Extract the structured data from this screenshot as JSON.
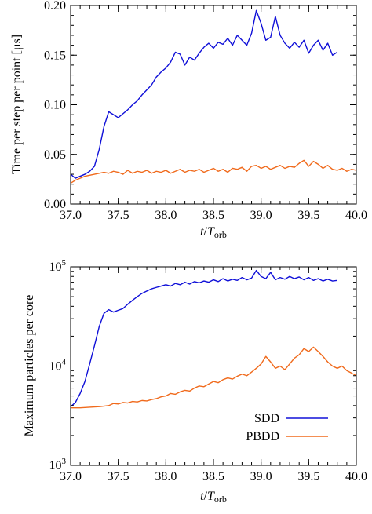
{
  "colors": {
    "sdd": "#1010d8",
    "pbdd": "#f06a1c",
    "axis": "#000000"
  },
  "chart_data": [
    {
      "type": "line",
      "ylabel": "Time per step per point [μs]",
      "xlabel_main": "t",
      "xlabel_slash": "/",
      "xlabel_T": "T",
      "xlabel_sub": "orb",
      "xlim": [
        37.0,
        40.0
      ],
      "ylim": [
        0.0,
        0.2
      ],
      "yscale": "linear",
      "x_ticks": [
        37.0,
        37.5,
        38.0,
        38.5,
        39.0,
        39.5,
        40.0
      ],
      "x_tick_labels": [
        "37.0",
        "37.5",
        "38.0",
        "38.5",
        "39.0",
        "39.5",
        "40.0"
      ],
      "y_ticks": [
        0.0,
        0.05,
        0.1,
        0.15,
        0.2
      ],
      "y_tick_labels": [
        "0.00",
        "0.05",
        "0.10",
        "0.15",
        "0.20"
      ],
      "series": [
        {
          "name": "SDD",
          "points": [
            [
              37.0,
              0.03
            ],
            [
              37.05,
              0.026
            ],
            [
              37.1,
              0.028
            ],
            [
              37.15,
              0.03
            ],
            [
              37.2,
              0.033
            ],
            [
              37.25,
              0.038
            ],
            [
              37.3,
              0.055
            ],
            [
              37.35,
              0.078
            ],
            [
              37.4,
              0.093
            ],
            [
              37.45,
              0.09
            ],
            [
              37.5,
              0.087
            ],
            [
              37.55,
              0.091
            ],
            [
              37.6,
              0.095
            ],
            [
              37.65,
              0.1
            ],
            [
              37.7,
              0.104
            ],
            [
              37.75,
              0.11
            ],
            [
              37.8,
              0.115
            ],
            [
              37.85,
              0.12
            ],
            [
              37.9,
              0.128
            ],
            [
              37.95,
              0.133
            ],
            [
              38.0,
              0.137
            ],
            [
              38.05,
              0.143
            ],
            [
              38.1,
              0.153
            ],
            [
              38.15,
              0.151
            ],
            [
              38.2,
              0.14
            ],
            [
              38.25,
              0.148
            ],
            [
              38.3,
              0.145
            ],
            [
              38.35,
              0.152
            ],
            [
              38.4,
              0.158
            ],
            [
              38.45,
              0.162
            ],
            [
              38.5,
              0.157
            ],
            [
              38.55,
              0.163
            ],
            [
              38.6,
              0.161
            ],
            [
              38.65,
              0.167
            ],
            [
              38.7,
              0.16
            ],
            [
              38.75,
              0.17
            ],
            [
              38.8,
              0.165
            ],
            [
              38.85,
              0.16
            ],
            [
              38.9,
              0.172
            ],
            [
              38.95,
              0.195
            ],
            [
              39.0,
              0.182
            ],
            [
              39.05,
              0.165
            ],
            [
              39.1,
              0.168
            ],
            [
              39.15,
              0.189
            ],
            [
              39.2,
              0.17
            ],
            [
              39.25,
              0.162
            ],
            [
              39.3,
              0.157
            ],
            [
              39.35,
              0.163
            ],
            [
              39.4,
              0.158
            ],
            [
              39.45,
              0.165
            ],
            [
              39.5,
              0.152
            ],
            [
              39.55,
              0.16
            ],
            [
              39.6,
              0.165
            ],
            [
              39.65,
              0.155
            ],
            [
              39.7,
              0.162
            ],
            [
              39.75,
              0.15
            ],
            [
              39.8,
              0.153
            ]
          ]
        },
        {
          "name": "PBDD",
          "points": [
            [
              37.0,
              0.021
            ],
            [
              37.05,
              0.024
            ],
            [
              37.1,
              0.026
            ],
            [
              37.15,
              0.028
            ],
            [
              37.2,
              0.029
            ],
            [
              37.25,
              0.03
            ],
            [
              37.3,
              0.031
            ],
            [
              37.35,
              0.032
            ],
            [
              37.4,
              0.031
            ],
            [
              37.45,
              0.033
            ],
            [
              37.5,
              0.032
            ],
            [
              37.55,
              0.03
            ],
            [
              37.6,
              0.034
            ],
            [
              37.65,
              0.031
            ],
            [
              37.7,
              0.033
            ],
            [
              37.75,
              0.032
            ],
            [
              37.8,
              0.034
            ],
            [
              37.85,
              0.031
            ],
            [
              37.9,
              0.033
            ],
            [
              37.95,
              0.032
            ],
            [
              38.0,
              0.034
            ],
            [
              38.05,
              0.031
            ],
            [
              38.1,
              0.033
            ],
            [
              38.15,
              0.035
            ],
            [
              38.2,
              0.032
            ],
            [
              38.25,
              0.034
            ],
            [
              38.3,
              0.033
            ],
            [
              38.35,
              0.035
            ],
            [
              38.4,
              0.032
            ],
            [
              38.45,
              0.034
            ],
            [
              38.5,
              0.036
            ],
            [
              38.55,
              0.033
            ],
            [
              38.6,
              0.035
            ],
            [
              38.65,
              0.032
            ],
            [
              38.7,
              0.036
            ],
            [
              38.75,
              0.035
            ],
            [
              38.8,
              0.037
            ],
            [
              38.85,
              0.033
            ],
            [
              38.9,
              0.038
            ],
            [
              38.95,
              0.039
            ],
            [
              39.0,
              0.036
            ],
            [
              39.05,
              0.038
            ],
            [
              39.1,
              0.035
            ],
            [
              39.15,
              0.037
            ],
            [
              39.2,
              0.039
            ],
            [
              39.25,
              0.036
            ],
            [
              39.3,
              0.038
            ],
            [
              39.35,
              0.037
            ],
            [
              39.4,
              0.041
            ],
            [
              39.45,
              0.044
            ],
            [
              39.5,
              0.038
            ],
            [
              39.55,
              0.043
            ],
            [
              39.6,
              0.04
            ],
            [
              39.65,
              0.036
            ],
            [
              39.7,
              0.039
            ],
            [
              39.75,
              0.035
            ],
            [
              39.8,
              0.034
            ],
            [
              39.85,
              0.036
            ],
            [
              39.9,
              0.033
            ],
            [
              39.95,
              0.035
            ],
            [
              40.0,
              0.034
            ]
          ]
        }
      ]
    },
    {
      "type": "line",
      "ylabel": "Maximum particles per core",
      "xlabel_main": "t",
      "xlabel_slash": "/",
      "xlabel_T": "T",
      "xlabel_sub": "orb",
      "xlim": [
        37.0,
        40.0
      ],
      "ylim": [
        1000,
        100000
      ],
      "yscale": "log",
      "legend_position": "bottom-right",
      "x_ticks": [
        37.0,
        37.5,
        38.0,
        38.5,
        39.0,
        39.5,
        40.0
      ],
      "x_tick_labels": [
        "37.0",
        "37.5",
        "38.0",
        "38.5",
        "39.0",
        "39.5",
        "40.0"
      ],
      "y_ticks": [
        1000,
        10000,
        100000
      ],
      "y_tick_labels": [
        {
          "base": "10",
          "exp": "3"
        },
        {
          "base": "10",
          "exp": "4"
        },
        {
          "base": "10",
          "exp": "5"
        }
      ],
      "series": [
        {
          "name": "SDD",
          "points": [
            [
              37.0,
              3900
            ],
            [
              37.05,
              4300
            ],
            [
              37.1,
              5300
            ],
            [
              37.15,
              7000
            ],
            [
              37.2,
              10500
            ],
            [
              37.25,
              16000
            ],
            [
              37.3,
              25000
            ],
            [
              37.35,
              34000
            ],
            [
              37.4,
              37000
            ],
            [
              37.45,
              35000
            ],
            [
              37.5,
              36500
            ],
            [
              37.55,
              38000
            ],
            [
              37.6,
              42000
            ],
            [
              37.65,
              46000
            ],
            [
              37.7,
              50000
            ],
            [
              37.75,
              54000
            ],
            [
              37.8,
              57000
            ],
            [
              37.85,
              60000
            ],
            [
              37.9,
              62000
            ],
            [
              37.95,
              64000
            ],
            [
              38.0,
              66000
            ],
            [
              38.05,
              64000
            ],
            [
              38.1,
              68000
            ],
            [
              38.15,
              66000
            ],
            [
              38.2,
              70000
            ],
            [
              38.25,
              67000
            ],
            [
              38.3,
              71000
            ],
            [
              38.35,
              69000
            ],
            [
              38.4,
              72000
            ],
            [
              38.45,
              70000
            ],
            [
              38.5,
              74000
            ],
            [
              38.55,
              71000
            ],
            [
              38.6,
              76000
            ],
            [
              38.65,
              72000
            ],
            [
              38.7,
              75000
            ],
            [
              38.75,
              73000
            ],
            [
              38.8,
              78000
            ],
            [
              38.85,
              74000
            ],
            [
              38.9,
              77000
            ],
            [
              38.95,
              92000
            ],
            [
              39.0,
              80000
            ],
            [
              39.05,
              76000
            ],
            [
              39.1,
              88000
            ],
            [
              39.15,
              74000
            ],
            [
              39.2,
              78000
            ],
            [
              39.25,
              75000
            ],
            [
              39.3,
              80000
            ],
            [
              39.35,
              76000
            ],
            [
              39.4,
              79000
            ],
            [
              39.45,
              74000
            ],
            [
              39.5,
              78000
            ],
            [
              39.55,
              73000
            ],
            [
              39.6,
              76000
            ],
            [
              39.65,
              72000
            ],
            [
              39.7,
              75000
            ],
            [
              39.75,
              72000
            ],
            [
              39.8,
              73000
            ]
          ]
        },
        {
          "name": "PBDD",
          "points": [
            [
              37.0,
              3800
            ],
            [
              37.1,
              3800
            ],
            [
              37.2,
              3850
            ],
            [
              37.3,
              3900
            ],
            [
              37.4,
              4000
            ],
            [
              37.45,
              4200
            ],
            [
              37.5,
              4150
            ],
            [
              37.55,
              4300
            ],
            [
              37.6,
              4250
            ],
            [
              37.65,
              4400
            ],
            [
              37.7,
              4350
            ],
            [
              37.75,
              4500
            ],
            [
              37.8,
              4450
            ],
            [
              37.85,
              4600
            ],
            [
              37.9,
              4700
            ],
            [
              37.95,
              4900
            ],
            [
              38.0,
              5000
            ],
            [
              38.05,
              5300
            ],
            [
              38.1,
              5200
            ],
            [
              38.15,
              5500
            ],
            [
              38.2,
              5700
            ],
            [
              38.25,
              5600
            ],
            [
              38.3,
              6000
            ],
            [
              38.35,
              6300
            ],
            [
              38.4,
              6200
            ],
            [
              38.45,
              6600
            ],
            [
              38.5,
              7000
            ],
            [
              38.55,
              6800
            ],
            [
              38.6,
              7300
            ],
            [
              38.65,
              7600
            ],
            [
              38.7,
              7400
            ],
            [
              38.75,
              7900
            ],
            [
              38.8,
              8300
            ],
            [
              38.85,
              8000
            ],
            [
              38.9,
              8700
            ],
            [
              38.95,
              9500
            ],
            [
              39.0,
              10500
            ],
            [
              39.05,
              12500
            ],
            [
              39.1,
              11000
            ],
            [
              39.15,
              9500
            ],
            [
              39.2,
              10000
            ],
            [
              39.25,
              9200
            ],
            [
              39.3,
              10500
            ],
            [
              39.35,
              12000
            ],
            [
              39.4,
              13000
            ],
            [
              39.45,
              15000
            ],
            [
              39.5,
              14000
            ],
            [
              39.55,
              15500
            ],
            [
              39.6,
              14000
            ],
            [
              39.65,
              12500
            ],
            [
              39.7,
              11000
            ],
            [
              39.75,
              10000
            ],
            [
              39.8,
              9500
            ],
            [
              39.85,
              10000
            ],
            [
              39.9,
              9000
            ],
            [
              39.95,
              8500
            ],
            [
              40.0,
              8000
            ]
          ]
        }
      ]
    }
  ]
}
